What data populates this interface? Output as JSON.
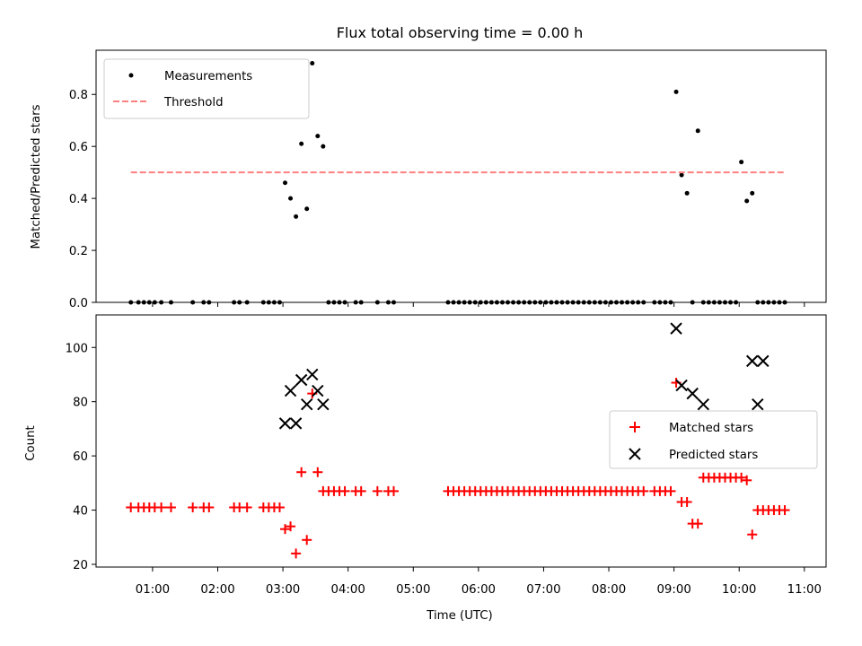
{
  "title": "Flux total observing time = 0.00 h",
  "xlabel": "Time (UTC)",
  "x_tick_labels": [
    "01:00",
    "02:00",
    "03:00",
    "04:00",
    "05:00",
    "06:00",
    "07:00",
    "08:00",
    "09:00",
    "10:00",
    "11:00"
  ],
  "colors": {
    "measurements": "#000000",
    "threshold": "#ff8080",
    "matched": "#ff0000",
    "predicted": "#000000"
  },
  "chart_data": [
    {
      "type": "scatter",
      "ylabel": "Matched/Predicted stars",
      "ylim": [
        0,
        0.97
      ],
      "y_ticks": [
        "0.0",
        "0.2",
        "0.4",
        "0.6",
        "0.8"
      ],
      "legend_placement": "top-left",
      "grid": false,
      "series": [
        {
          "name": "Measurements",
          "marker": "dot",
          "x": [
            "00:40",
            "00:47",
            "00:52",
            "00:57",
            "01:02",
            "01:08",
            "01:17",
            "01:37",
            "01:47",
            "01:52",
            "02:15",
            "02:20",
            "02:27",
            "02:42",
            "02:47",
            "02:52",
            "02:57",
            "03:02",
            "03:07",
            "03:12",
            "03:17",
            "03:22",
            "03:27",
            "03:32",
            "03:37",
            "03:42",
            "03:47",
            "03:52",
            "03:57",
            "04:07",
            "04:12",
            "04:27",
            "04:37",
            "04:42",
            "05:32",
            "05:37",
            "05:42",
            "05:47",
            "05:52",
            "05:57",
            "06:02",
            "06:07",
            "06:12",
            "06:17",
            "06:22",
            "06:27",
            "06:32",
            "06:37",
            "06:42",
            "06:47",
            "06:52",
            "06:57",
            "07:02",
            "07:07",
            "07:12",
            "07:17",
            "07:22",
            "07:27",
            "07:32",
            "07:37",
            "07:42",
            "07:47",
            "07:52",
            "07:57",
            "08:02",
            "08:07",
            "08:12",
            "08:17",
            "08:22",
            "08:27",
            "08:32",
            "08:42",
            "08:47",
            "08:52",
            "08:57",
            "09:02",
            "09:07",
            "09:12",
            "09:17",
            "09:22",
            "09:27",
            "09:32",
            "09:37",
            "09:42",
            "09:47",
            "09:52",
            "09:57",
            "10:02",
            "10:07",
            "10:12",
            "10:17",
            "10:22",
            "10:27",
            "10:32",
            "10:37",
            "10:42"
          ],
          "y": [
            0,
            0,
            0,
            0,
            0,
            0,
            0,
            0,
            0,
            0,
            0,
            0,
            0,
            0,
            0,
            0,
            0,
            0.46,
            0.4,
            0.33,
            0.61,
            0.36,
            0.92,
            0.64,
            0.6,
            0,
            0,
            0,
            0,
            0,
            0,
            0,
            0,
            0,
            0,
            0,
            0,
            0,
            0,
            0,
            0,
            0,
            0,
            0,
            0,
            0,
            0,
            0,
            0,
            0,
            0,
            0,
            0,
            0,
            0,
            0,
            0,
            0,
            0,
            0,
            0,
            0,
            0,
            0,
            0,
            0,
            0,
            0,
            0,
            0,
            0,
            0,
            0,
            0,
            0,
            0.81,
            0.49,
            0.42,
            0,
            0.66,
            0,
            0,
            0,
            0,
            0,
            0,
            0,
            0.54,
            0.39,
            0.42,
            0,
            0,
            0,
            0,
            0,
            0
          ]
        },
        {
          "name": "Threshold",
          "marker": "dashed-line",
          "x": [
            "00:40",
            "10:42"
          ],
          "y": [
            0.5,
            0.5
          ]
        }
      ]
    },
    {
      "type": "scatter",
      "ylabel": "Count",
      "ylim": [
        19,
        112
      ],
      "y_ticks": [
        "20",
        "40",
        "60",
        "80",
        "100"
      ],
      "legend_placement": "center-right",
      "grid": false,
      "series": [
        {
          "name": "Matched stars",
          "marker": "plus",
          "x": [
            "00:40",
            "00:47",
            "00:52",
            "00:57",
            "01:02",
            "01:08",
            "01:17",
            "01:37",
            "01:47",
            "01:52",
            "02:15",
            "02:20",
            "02:27",
            "02:42",
            "02:47",
            "02:52",
            "02:57",
            "03:02",
            "03:07",
            "03:12",
            "03:17",
            "03:22",
            "03:27",
            "03:32",
            "03:37",
            "03:42",
            "03:47",
            "03:52",
            "03:57",
            "04:07",
            "04:12",
            "04:27",
            "04:37",
            "04:42",
            "05:32",
            "05:37",
            "05:42",
            "05:47",
            "05:52",
            "05:57",
            "06:02",
            "06:07",
            "06:12",
            "06:17",
            "06:22",
            "06:27",
            "06:32",
            "06:37",
            "06:42",
            "06:47",
            "06:52",
            "06:57",
            "07:02",
            "07:07",
            "07:12",
            "07:17",
            "07:22",
            "07:27",
            "07:32",
            "07:37",
            "07:42",
            "07:47",
            "07:52",
            "07:57",
            "08:02",
            "08:07",
            "08:12",
            "08:17",
            "08:22",
            "08:27",
            "08:32",
            "08:42",
            "08:47",
            "08:52",
            "08:57",
            "09:02",
            "09:07",
            "09:12",
            "09:17",
            "09:22",
            "09:27",
            "09:32",
            "09:37",
            "09:42",
            "09:47",
            "09:52",
            "09:57",
            "10:02",
            "10:07",
            "10:12",
            "10:17",
            "10:22",
            "10:27",
            "10:32",
            "10:37",
            "10:42"
          ],
          "y": [
            41,
            41,
            41,
            41,
            41,
            41,
            41,
            41,
            41,
            41,
            41,
            41,
            41,
            41,
            41,
            41,
            41,
            33,
            34,
            24,
            54,
            29,
            83,
            54,
            47,
            47,
            47,
            47,
            47,
            47,
            47,
            47,
            47,
            47,
            47,
            47,
            47,
            47,
            47,
            47,
            47,
            47,
            47,
            47,
            47,
            47,
            47,
            47,
            47,
            47,
            47,
            47,
            47,
            47,
            47,
            47,
            47,
            47,
            47,
            47,
            47,
            47,
            47,
            47,
            47,
            47,
            47,
            47,
            47,
            47,
            47,
            47,
            47,
            47,
            47,
            87,
            43,
            43,
            35,
            35,
            52,
            52,
            52,
            52,
            52,
            52,
            52,
            52,
            51,
            31,
            40,
            40,
            40,
            40,
            40,
            40
          ]
        },
        {
          "name": "Predicted stars",
          "marker": "x",
          "x": [
            "03:02",
            "03:07",
            "03:12",
            "03:17",
            "03:22",
            "03:27",
            "03:32",
            "03:37",
            "09:02",
            "09:07",
            "09:17",
            "09:27",
            "10:12",
            "10:17",
            "10:22"
          ],
          "y": [
            72,
            84,
            72,
            88,
            79,
            90,
            84,
            79,
            107,
            86,
            83,
            79,
            95,
            79,
            95
          ]
        }
      ]
    }
  ]
}
